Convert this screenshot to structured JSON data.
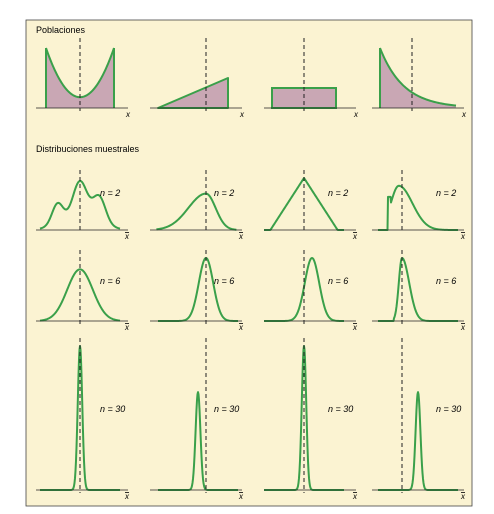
{
  "section_populations": "Poblaciones",
  "section_sampling": "Distribuciones muestrales",
  "axis_population": "x",
  "axis_sample": "x",
  "colors": {
    "background": "#fbf3d2",
    "curve": "#3aa04a",
    "fill": "#c9a7b4",
    "axis": "#222222",
    "border": "#444444"
  },
  "populations": [
    {
      "shape": "u-shaped"
    },
    {
      "shape": "triangular-increasing"
    },
    {
      "shape": "uniform"
    },
    {
      "shape": "exponential-decreasing"
    }
  ],
  "sampling_rows": [
    {
      "n_label": "n = 2",
      "shapes": [
        "bumpy-trimodal",
        "skewed-bell",
        "triangle",
        "right-skewed-wall"
      ]
    },
    {
      "n_label": "n = 6",
      "shapes": [
        "bell-wide",
        "bell",
        "bell",
        "skewed-tall"
      ]
    },
    {
      "n_label": "n = 30",
      "shapes": [
        "spike-tall",
        "spike-medium",
        "spike-tall",
        "spike-medium"
      ]
    }
  ]
}
